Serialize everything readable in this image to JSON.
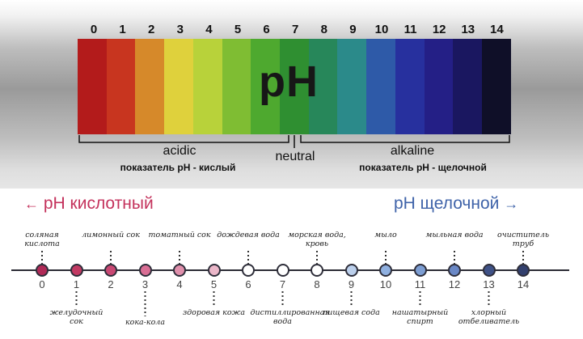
{
  "top": {
    "numbers": [
      "0",
      "1",
      "2",
      "3",
      "4",
      "5",
      "6",
      "7",
      "8",
      "9",
      "10",
      "11",
      "12",
      "13",
      "14"
    ],
    "strip_colors": [
      "#b31b1b",
      "#c8351f",
      "#d6892a",
      "#dfd13c",
      "#b8d23a",
      "#7fbd33",
      "#4ea92f",
      "#2f8f31",
      "#27875a",
      "#2b8a8a",
      "#2e5aa8",
      "#27309e",
      "#241f86",
      "#1a1760",
      "#0f0f28"
    ],
    "ph_label": "pH",
    "acidic_label": "acidic",
    "acidic_ru": "показатель pH - кислый",
    "neutral_label": "neutral",
    "alkaline_label": "alkaline",
    "alkaline_ru": "показатель pH - щелочной"
  },
  "bottom": {
    "acid_header": "pH кислотный",
    "acid_arrow": "←",
    "alk_header": "pH щелочной",
    "alk_arrow": "→",
    "scale": [
      {
        "num": "0",
        "fill": "#b02a57"
      },
      {
        "num": "1",
        "fill": "#c23a63"
      },
      {
        "num": "2",
        "fill": "#c94873"
      },
      {
        "num": "3",
        "fill": "#d96e94"
      },
      {
        "num": "4",
        "fill": "#e090ac"
      },
      {
        "num": "5",
        "fill": "#ebb7c9"
      },
      {
        "num": "6",
        "fill": "#ffffff"
      },
      {
        "num": "7",
        "fill": "#ffffff"
      },
      {
        "num": "8",
        "fill": "#ffffff"
      },
      {
        "num": "9",
        "fill": "#bcd0ec"
      },
      {
        "num": "10",
        "fill": "#8fb0e0"
      },
      {
        "num": "11",
        "fill": "#7d9ed3"
      },
      {
        "num": "12",
        "fill": "#6a88c6"
      },
      {
        "num": "13",
        "fill": "#3f5287"
      },
      {
        "num": "14",
        "fill": "#33406e"
      }
    ],
    "labels_above": [
      {
        "idx": 0,
        "text": "соляная кислота"
      },
      {
        "idx": 2,
        "text": "лимонный сок"
      },
      {
        "idx": 4,
        "text": "томатный сок"
      },
      {
        "idx": 6,
        "text": "дождевая вода"
      },
      {
        "idx": 8,
        "text": "морская вода, кровь"
      },
      {
        "idx": 10,
        "text": "мыло"
      },
      {
        "idx": 12,
        "text": "мыльная вода"
      },
      {
        "idx": 14,
        "text": "очиститель труб"
      }
    ],
    "labels_below": [
      {
        "idx": 1,
        "text": "желудочный сок"
      },
      {
        "idx": 3,
        "text": "кока-кола"
      },
      {
        "idx": 5,
        "text": "здоровая кожа"
      },
      {
        "idx": 7,
        "text": "дистиллированная вода"
      },
      {
        "idx": 9,
        "text": "пищевая сода"
      },
      {
        "idx": 11,
        "text": "нашатырный спирт"
      },
      {
        "idx": 13,
        "text": "хлорный отбеливатель"
      }
    ]
  }
}
